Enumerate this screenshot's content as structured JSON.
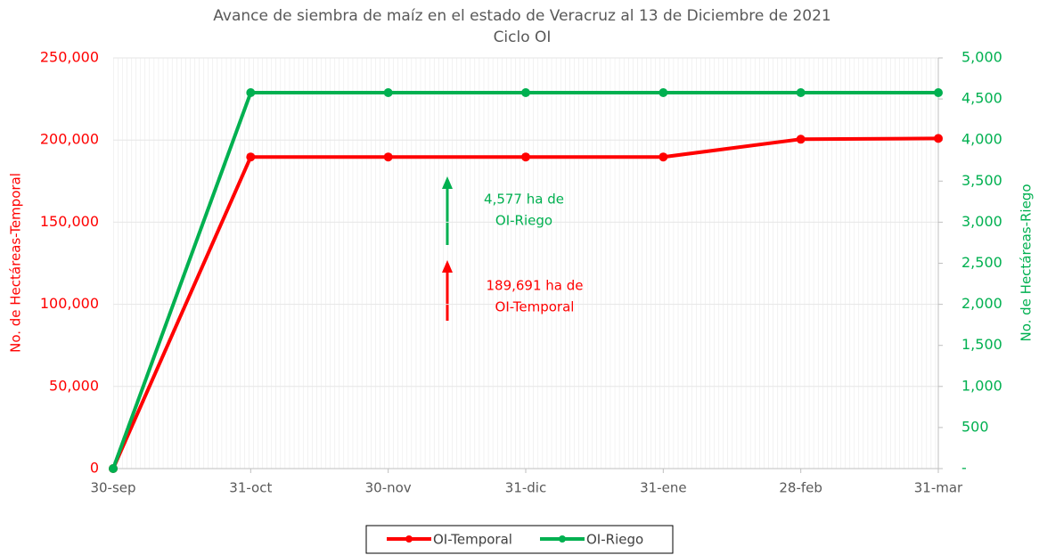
{
  "chart_data": {
    "type": "line",
    "title": "Avance de siembra de maíz en el estado de Veracruz al 13 de Diciembre de 2021",
    "subtitle": "Ciclo OI",
    "ylabel": "No. de Hectáreas-Temporal",
    "y2label": "No. de Hectáreas-Riego",
    "categories": [
      "30-sep",
      "31-oct",
      "30-nov",
      "31-dic",
      "31-ene",
      "28-feb",
      "31-mar"
    ],
    "series": [
      {
        "name": "OI-Temporal",
        "color": "#ff0000",
        "axis": "y",
        "values": [
          0,
          189691,
          189691,
          189691,
          189691,
          200500,
          201000
        ]
      },
      {
        "name": "OI-Riego",
        "color": "#00b050",
        "axis": "y2",
        "values": [
          0,
          4577,
          4577,
          4577,
          4577,
          4577,
          4577
        ]
      }
    ],
    "ylim": [
      0,
      250000
    ],
    "yticks": [
      0,
      {
        "value": 50000,
        "label": "50,000"
      },
      {
        "value": 100000,
        "label": "100,000"
      },
      {
        "value": 150000,
        "label": "150,000"
      },
      {
        "value": 200000,
        "label": "200,000"
      },
      {
        "value": 250000,
        "label": "250,000"
      }
    ],
    "y2lim": [
      0,
      5000
    ],
    "y2ticks": [
      {
        "value": 0,
        "label": "-"
      },
      500,
      {
        "value": 1000,
        "label": "1,000"
      },
      {
        "value": 1500,
        "label": "1,500"
      },
      {
        "value": 2000,
        "label": "2,000"
      },
      {
        "value": 2500,
        "label": "2,500"
      },
      {
        "value": 3000,
        "label": "3,000"
      },
      {
        "value": 3500,
        "label": "3,500"
      },
      {
        "value": 4000,
        "label": "4,000"
      },
      {
        "value": 4500,
        "label": "4,500"
      },
      {
        "value": 5000,
        "label": "5,000"
      }
    ],
    "grid": true,
    "legend": "bottom",
    "annotations": [
      {
        "lines": [
          "4,577 ha de",
          "OI-Riego"
        ],
        "color": "#00b050"
      },
      {
        "lines": [
          "189,691 ha de",
          "OI-Temporal"
        ],
        "color": "#ff0000"
      }
    ]
  }
}
